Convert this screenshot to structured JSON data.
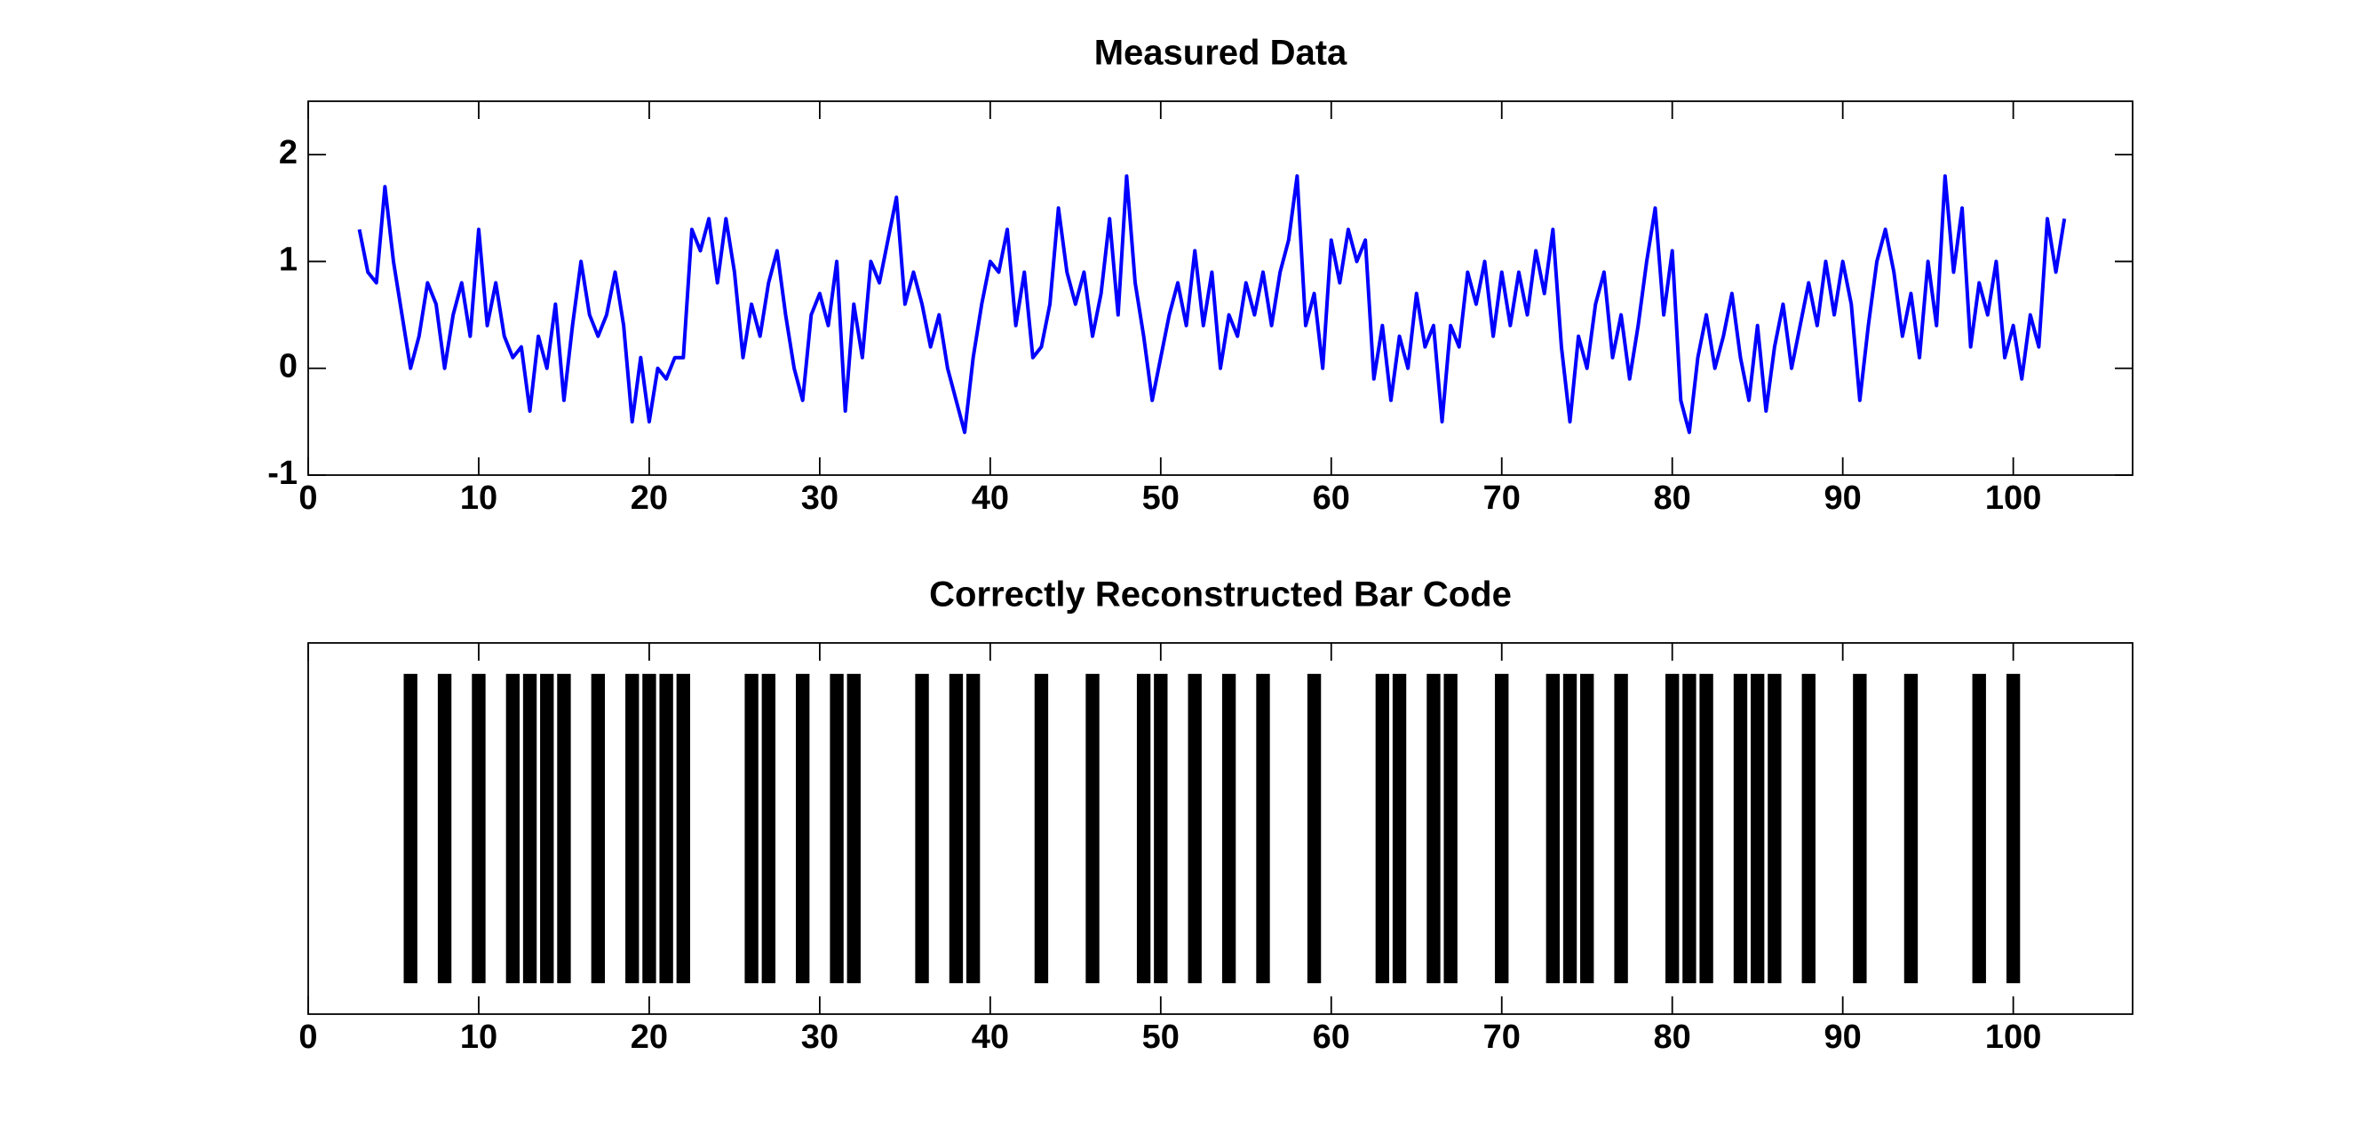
{
  "chart_data": [
    {
      "type": "line",
      "title": "Measured Data",
      "color": "#0000ff",
      "x": [
        3,
        3.5,
        4,
        4.5,
        5,
        5.5,
        6,
        6.5,
        7,
        7.5,
        8,
        8.5,
        9,
        9.5,
        10,
        10.5,
        11,
        11.5,
        12,
        12.5,
        13,
        13.5,
        14,
        14.5,
        15,
        15.5,
        16,
        16.5,
        17,
        17.5,
        18,
        18.5,
        19,
        19.5,
        20,
        20.5,
        21,
        21.5,
        22,
        22.5,
        23,
        23.5,
        24,
        24.5,
        25,
        25.5,
        26,
        26.5,
        27,
        27.5,
        28,
        28.5,
        29,
        29.5,
        30,
        30.5,
        31,
        31.5,
        32,
        32.5,
        33,
        33.5,
        34,
        34.5,
        35,
        35.5,
        36,
        36.5,
        37,
        37.5,
        38,
        38.5,
        39,
        39.5,
        40,
        40.5,
        41,
        41.5,
        42,
        42.5,
        43,
        43.5,
        44,
        44.5,
        45,
        45.5,
        46,
        46.5,
        47,
        47.5,
        48,
        48.5,
        49,
        49.5,
        50,
        50.5,
        51,
        51.5,
        52,
        52.5,
        53,
        53.5,
        54,
        54.5,
        55,
        55.5,
        56,
        56.5,
        57,
        57.5,
        58,
        58.5,
        59,
        59.5,
        60,
        60.5,
        61,
        61.5,
        62,
        62.5,
        63,
        63.5,
        64,
        64.5,
        65,
        65.5,
        66,
        66.5,
        67,
        67.5,
        68,
        68.5,
        69,
        69.5,
        70,
        70.5,
        71,
        71.5,
        72,
        72.5,
        73,
        73.5,
        74,
        74.5,
        75,
        75.5,
        76,
        76.5,
        77,
        77.5,
        78,
        78.5,
        79,
        79.5,
        80,
        80.5,
        81,
        81.5,
        82,
        82.5,
        83,
        83.5,
        84,
        84.5,
        85,
        85.5,
        86,
        86.5,
        87,
        87.5,
        88,
        88.5,
        89,
        89.5,
        90,
        90.5,
        91,
        91.5,
        92,
        92.5,
        93,
        93.5,
        94,
        94.5,
        95,
        95.5,
        96,
        96.5,
        97,
        97.5,
        98,
        98.5,
        99,
        99.5,
        100,
        100.5,
        101,
        101.5,
        102,
        102.5,
        103
      ],
      "values": [
        1.3,
        0.9,
        0.8,
        1.7,
        1.0,
        0.5,
        0.0,
        0.3,
        0.8,
        0.6,
        0.0,
        0.5,
        0.8,
        0.3,
        1.3,
        0.4,
        0.8,
        0.3,
        0.1,
        0.2,
        -0.4,
        0.3,
        0.0,
        0.6,
        -0.3,
        0.4,
        1.0,
        0.5,
        0.3,
        0.5,
        0.9,
        0.4,
        -0.5,
        0.1,
        -0.5,
        0.0,
        -0.1,
        0.1,
        0.1,
        1.3,
        1.1,
        1.4,
        0.8,
        1.4,
        0.9,
        0.1,
        0.6,
        0.3,
        0.8,
        1.1,
        0.5,
        0.0,
        -0.3,
        0.5,
        0.7,
        0.4,
        1.0,
        -0.4,
        0.6,
        0.1,
        1.0,
        0.8,
        1.2,
        1.6,
        0.6,
        0.9,
        0.6,
        0.2,
        0.5,
        0.0,
        -0.3,
        -0.6,
        0.1,
        0.6,
        1.0,
        0.9,
        1.3,
        0.4,
        0.9,
        0.1,
        0.2,
        0.6,
        1.5,
        0.9,
        0.6,
        0.9,
        0.3,
        0.7,
        1.4,
        0.5,
        1.8,
        0.8,
        0.3,
        -0.3,
        0.1,
        0.5,
        0.8,
        0.4,
        1.1,
        0.4,
        0.9,
        0.0,
        0.5,
        0.3,
        0.8,
        0.5,
        0.9,
        0.4,
        0.9,
        1.2,
        1.8,
        0.4,
        0.7,
        0.0,
        1.2,
        0.8,
        1.3,
        1.0,
        1.2,
        -0.1,
        0.4,
        -0.3,
        0.3,
        0.0,
        0.7,
        0.2,
        0.4,
        -0.5,
        0.4,
        0.2,
        0.9,
        0.6,
        1.0,
        0.3,
        0.9,
        0.4,
        0.9,
        0.5,
        1.1,
        0.7,
        1.3,
        0.2,
        -0.5,
        0.3,
        0.0,
        0.6,
        0.9,
        0.1,
        0.5,
        -0.1,
        0.4,
        1.0,
        1.5,
        0.5,
        1.1,
        -0.3,
        -0.6,
        0.1,
        0.5,
        0.0,
        0.3,
        0.7,
        0.1,
        -0.3,
        0.4,
        -0.4,
        0.2,
        0.6,
        0.0,
        0.4,
        0.8,
        0.4,
        1.0,
        0.5,
        1.0,
        0.6,
        -0.3,
        0.4,
        1.0,
        1.3,
        0.9,
        0.3,
        0.7,
        0.1,
        1.0,
        0.4,
        1.8,
        0.9,
        1.5,
        0.2,
        0.8,
        0.5,
        1.0,
        0.1,
        0.4,
        -0.1,
        0.5,
        0.2,
        1.4,
        0.9,
        1.4
      ],
      "xlim": [
        0,
        107
      ],
      "xticks": [
        0,
        10,
        20,
        30,
        40,
        50,
        60,
        70,
        80,
        90,
        100
      ],
      "ylim": [
        -1,
        2.5
      ],
      "yticks": [
        -1,
        0,
        1,
        2
      ]
    },
    {
      "type": "bar",
      "title": "Correctly Reconstructed Bar Code",
      "color": "#000000",
      "x": [
        6,
        8,
        10,
        12,
        13,
        14,
        15,
        17,
        19,
        20,
        21,
        22,
        26,
        27,
        29,
        31,
        32,
        36,
        38,
        39,
        43,
        46,
        49,
        50,
        52,
        54,
        56,
        59,
        63,
        64,
        66,
        67,
        70,
        73,
        74,
        75,
        77,
        80,
        81,
        82,
        84,
        85,
        86,
        88,
        91,
        94,
        98,
        100
      ],
      "values": [
        1,
        1,
        1,
        1,
        1,
        1,
        1,
        1,
        1,
        1,
        1,
        1,
        1,
        1,
        1,
        1,
        1,
        1,
        1,
        1,
        1,
        1,
        1,
        1,
        1,
        1,
        1,
        1,
        1,
        1,
        1,
        1,
        1,
        1,
        1,
        1,
        1,
        1,
        1,
        1,
        1,
        1,
        1,
        1,
        1,
        1,
        1,
        1
      ],
      "xlim": [
        0,
        107
      ],
      "xticks": [
        0,
        10,
        20,
        30,
        40,
        50,
        60,
        70,
        80,
        90,
        100
      ],
      "ylim": [
        -0.1,
        1.1
      ]
    }
  ]
}
